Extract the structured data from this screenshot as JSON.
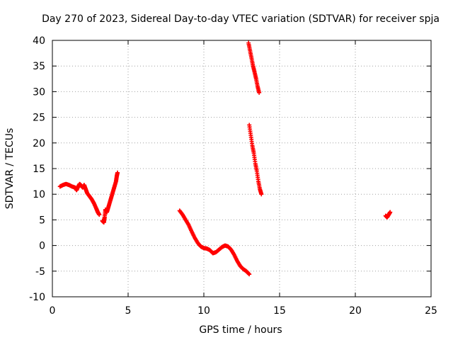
{
  "chart_data": {
    "type": "scatter",
    "title": "Day 270 of 2023, Sidereal Day-to-day VTEC variation (SDTVAR) for receiver spja",
    "xlabel": "GPS time / hours",
    "ylabel": "SDTVAR / TECUs",
    "xlim": [
      0,
      25
    ],
    "ylim": [
      -10,
      40
    ],
    "xticks": [
      "0",
      "5",
      "10",
      "15",
      "20",
      "25"
    ],
    "yticks": [
      "-10",
      "-5",
      "0",
      "5",
      "10",
      "15",
      "20",
      "25",
      "30",
      "35",
      "40"
    ],
    "grid": true,
    "marker": "+",
    "color": "#ff0000",
    "series": [
      {
        "name": "SDTVAR",
        "segments": [
          [
            [
              0.5,
              11.5
            ],
            [
              0.7,
              11.8
            ],
            [
              0.9,
              12.0
            ],
            [
              1.1,
              11.8
            ],
            [
              1.3,
              11.5
            ],
            [
              1.5,
              11.3
            ],
            [
              1.6,
              10.8
            ],
            [
              1.7,
              11.5
            ],
            [
              1.8,
              12.0
            ],
            [
              1.9,
              11.7
            ],
            [
              2.0,
              11.3
            ],
            [
              2.1,
              11.8
            ],
            [
              2.2,
              11.0
            ],
            [
              2.3,
              10.2
            ],
            [
              2.45,
              9.6
            ],
            [
              2.6,
              9.0
            ],
            [
              2.75,
              8.2
            ],
            [
              2.9,
              7.2
            ],
            [
              3.0,
              6.5
            ],
            [
              3.1,
              6.0
            ]
          ],
          [
            [
              3.3,
              4.8
            ],
            [
              3.4,
              4.5
            ],
            [
              3.45,
              5.5
            ],
            [
              3.5,
              7.0
            ],
            [
              3.6,
              6.5
            ],
            [
              3.7,
              7.5
            ],
            [
              3.8,
              8.5
            ],
            [
              3.9,
              9.5
            ],
            [
              4.0,
              10.5
            ],
            [
              4.1,
              11.5
            ],
            [
              4.2,
              12.5
            ],
            [
              4.25,
              13.5
            ],
            [
              4.3,
              14.2
            ]
          ],
          [
            [
              8.4,
              6.8
            ],
            [
              8.6,
              6.0
            ],
            [
              8.8,
              5.0
            ],
            [
              9.0,
              4.0
            ],
            [
              9.2,
              2.7
            ],
            [
              9.4,
              1.5
            ],
            [
              9.6,
              0.5
            ],
            [
              9.8,
              -0.2
            ],
            [
              10.0,
              -0.5
            ],
            [
              10.2,
              -0.6
            ],
            [
              10.4,
              -0.9
            ],
            [
              10.6,
              -1.5
            ],
            [
              10.8,
              -1.3
            ],
            [
              11.0,
              -0.8
            ],
            [
              11.2,
              -0.3
            ],
            [
              11.4,
              0.0
            ],
            [
              11.6,
              -0.2
            ],
            [
              11.8,
              -0.8
            ],
            [
              12.0,
              -1.8
            ],
            [
              12.2,
              -3.0
            ],
            [
              12.4,
              -4.0
            ],
            [
              12.6,
              -4.6
            ],
            [
              12.8,
              -5.0
            ],
            [
              13.0,
              -5.6
            ]
          ],
          [
            [
              13.0,
              23.5
            ],
            [
              13.1,
              21.5
            ],
            [
              13.2,
              19.5
            ],
            [
              13.3,
              18.0
            ],
            [
              13.4,
              16.0
            ],
            [
              13.5,
              14.5
            ],
            [
              13.6,
              12.5
            ],
            [
              13.7,
              11.0
            ],
            [
              13.8,
              10.0
            ]
          ],
          [
            [
              12.95,
              39.5
            ],
            [
              13.05,
              38.0
            ],
            [
              13.15,
              36.5
            ],
            [
              13.25,
              35.0
            ],
            [
              13.35,
              33.8
            ],
            [
              13.45,
              32.5
            ],
            [
              13.55,
              31.0
            ],
            [
              13.65,
              29.8
            ]
          ],
          [
            [
              22.0,
              5.8
            ],
            [
              22.1,
              5.5
            ],
            [
              22.2,
              6.0
            ],
            [
              22.3,
              6.5
            ]
          ]
        ]
      }
    ]
  }
}
